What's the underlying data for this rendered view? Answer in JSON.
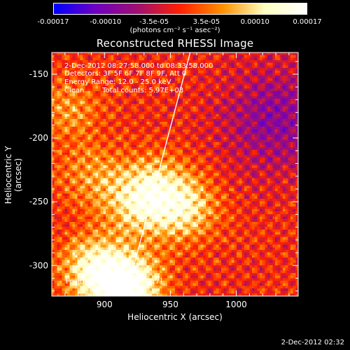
{
  "colorbar": {
    "ticks": [
      "-0.00017",
      "-0.00010",
      "-3.5e-05",
      "3.5e-05",
      "0.00010",
      "0.00017"
    ],
    "tick_values": [
      -0.00017,
      -0.0001,
      -3.5e-05,
      3.5e-05,
      0.0001,
      0.00017
    ],
    "range": [
      -0.00017,
      0.00017
    ],
    "units_text": "(photons cm⁻² s⁻¹ asec⁻²)",
    "colors": [
      "#0000ff",
      "#7000c0",
      "#a01070",
      "#ff2000",
      "#ff9000",
      "#ffffc0",
      "#ffffff"
    ]
  },
  "chart_data": {
    "type": "heatmap",
    "title": "Reconstructed RHESSI Image",
    "xlabel": "Heliocentric X (arcsec)",
    "ylabel": "Heliocentric Y (arcsec)",
    "xlim": [
      860,
      1047
    ],
    "ylim": [
      -324,
      -133
    ],
    "xticks": [
      900,
      950,
      1000
    ],
    "yticks": [
      -150,
      -200,
      -250,
      -300
    ],
    "sources": [
      {
        "x": 918,
        "y": -317,
        "peak": 0.00017
      },
      {
        "x": 893,
        "y": -303,
        "peak": 0.00013
      },
      {
        "x": 960,
        "y": -255,
        "peak": 0.00011
      },
      {
        "x": 925,
        "y": -252,
        "peak": 9e-05
      },
      {
        "x": 938,
        "y": -236,
        "peak": 7e-05
      },
      {
        "x": 873,
        "y": -178,
        "peak": 6e-05
      },
      {
        "x": 890,
        "y": -230,
        "peak": 6e-05
      }
    ],
    "negative_region": {
      "x": 1030,
      "y": -185,
      "min": -0.0001
    },
    "limb_line": {
      "x": [
        918,
        965
      ],
      "y": [
        -317,
        -133
      ]
    },
    "annotations": {
      "time": "2-Dec-2012 08:27:58.000 to 08:33:58.000",
      "detectors": "Detectors: 3F 5F 6F 7F 8F 9F, Att 0",
      "energy": "Energy Range: 12.0 - 25.0 keV",
      "method": "Clean",
      "counts": "Total counts: 5.97E+03",
      "peak": "Position of Peak: [918,-317]"
    }
  },
  "timestamp": "2-Dec-2012 02:32"
}
